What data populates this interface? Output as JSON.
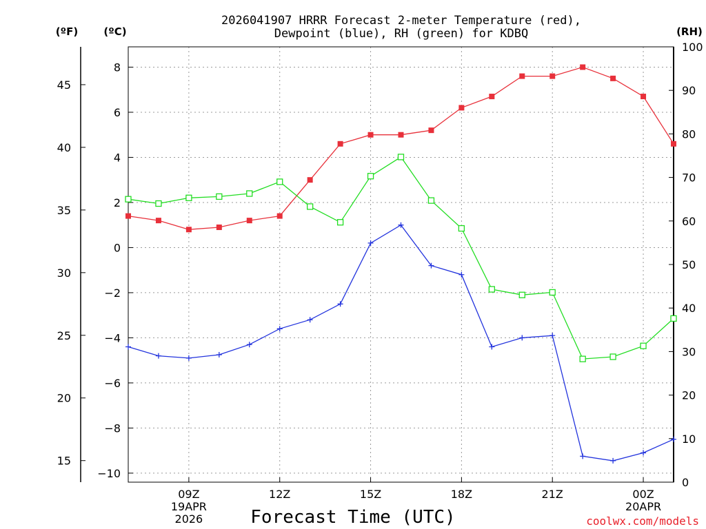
{
  "chart_data": {
    "type": "line",
    "title_line1": "2026041907 HRRR Forecast 2-meter Temperature (red),",
    "title_line2": "Dewpoint (blue), RH (green) for KDBQ",
    "left_unit_f": "(ºF)",
    "left_unit_c": "(ºC)",
    "right_unit": "(RH)",
    "xlabel": "Forecast Time (UTC)",
    "credit": "coolwx.com/models",
    "x_hours": [
      7,
      8,
      9,
      10,
      11,
      12,
      13,
      14,
      15,
      16,
      17,
      18,
      19,
      20,
      21,
      22,
      23,
      24,
      25
    ],
    "xlim": [
      7,
      25
    ],
    "x_ticks": [
      {
        "hour": 9,
        "lines": [
          "09Z",
          "19APR",
          "2026"
        ]
      },
      {
        "hour": 12,
        "lines": [
          "12Z"
        ]
      },
      {
        "hour": 15,
        "lines": [
          "15Z"
        ]
      },
      {
        "hour": 18,
        "lines": [
          "18Z"
        ]
      },
      {
        "hour": 21,
        "lines": [
          "21Z"
        ]
      },
      {
        "hour": 24,
        "lines": [
          "00Z",
          "20APR"
        ]
      }
    ],
    "ylim_c": [
      -10.4,
      8.9
    ],
    "y_ticks_c": [
      "8",
      "6",
      "4",
      "2",
      "0",
      "−2",
      "−4",
      "−6",
      "−8",
      "−10"
    ],
    "y_ticks_c_values": [
      8,
      6,
      4,
      2,
      0,
      -2,
      -4,
      -6,
      -8,
      -10
    ],
    "y_ticks_f": [
      "45",
      "40",
      "35",
      "30",
      "25",
      "20",
      "15"
    ],
    "y_ticks_f_values": [
      45,
      40,
      35,
      30,
      25,
      20,
      15
    ],
    "ylim_rh": [
      0,
      100
    ],
    "y_ticks_rh": [
      "0",
      "10",
      "20",
      "30",
      "40",
      "50",
      "60",
      "70",
      "80",
      "90",
      "100"
    ],
    "y_ticks_rh_values": [
      0,
      10,
      20,
      30,
      40,
      50,
      60,
      70,
      80,
      90,
      100
    ],
    "series": [
      {
        "name": "Temperature",
        "axis": "c",
        "color": "#e8303a",
        "marker": "filled-square",
        "values": [
          1.4,
          1.2,
          0.8,
          0.9,
          1.2,
          1.4,
          3.0,
          4.6,
          5.0,
          5.0,
          5.2,
          6.2,
          6.7,
          7.6,
          7.6,
          8.0,
          7.5,
          6.7,
          4.6
        ]
      },
      {
        "name": "Dewpoint",
        "axis": "c",
        "color": "#2233dd",
        "marker": "plus",
        "values": [
          -4.4,
          -4.8,
          -4.9,
          -4.75,
          -4.3,
          -3.6,
          -3.2,
          -2.5,
          0.2,
          1.0,
          -0.8,
          -1.2,
          -4.4,
          -4.0,
          -3.9,
          -9.25,
          -9.45,
          -9.1,
          -8.5
        ]
      },
      {
        "name": "RH",
        "axis": "rh",
        "color": "#22dd22",
        "marker": "open-square",
        "values": [
          65,
          64,
          65.3,
          65.6,
          66.3,
          69,
          63.3,
          59.7,
          70.3,
          74.7,
          64.7,
          58.3,
          44.3,
          43,
          43.6,
          28.3,
          28.8,
          31.3,
          37.6
        ]
      }
    ]
  }
}
